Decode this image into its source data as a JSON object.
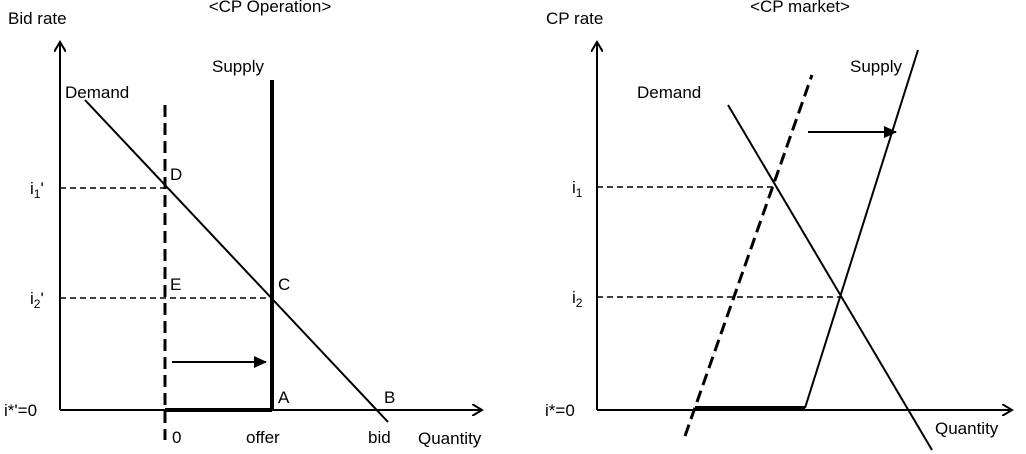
{
  "left": {
    "title": "<CP Operation>",
    "y_axis": "Bid rate",
    "x_axis": "Quantity",
    "demand": "Demand",
    "supply": "Supply",
    "i1": {
      "base": "i",
      "sub": "1",
      "suffix": "'"
    },
    "i2": {
      "base": "i",
      "sub": "2",
      "suffix": "'"
    },
    "origin": "i*'=0",
    "points": [
      "D",
      "E",
      "C",
      "A",
      "B"
    ],
    "x_labels": [
      "0",
      "offer",
      "bid"
    ]
  },
  "right": {
    "title": "<CP market>",
    "y_axis": "CP rate",
    "x_axis": "Quantity",
    "demand": "Demand",
    "supply": "Supply",
    "i1": {
      "base": "i",
      "sub": "1"
    },
    "i2": {
      "base": "i",
      "sub": "2"
    },
    "origin": "i*=0"
  }
}
